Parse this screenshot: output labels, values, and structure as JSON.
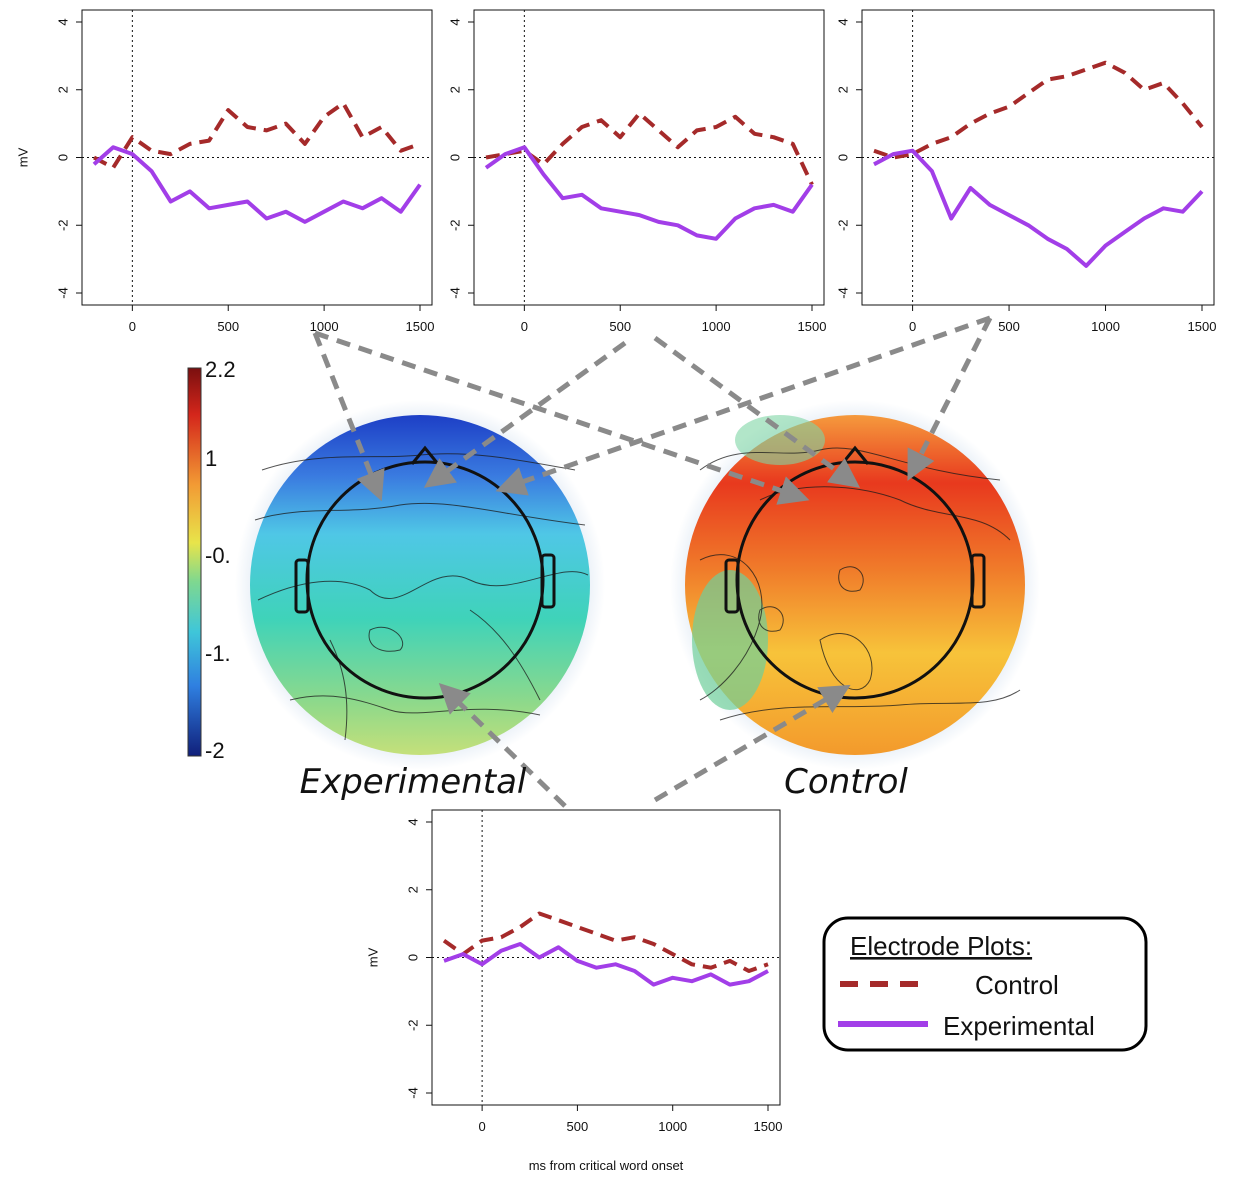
{
  "colors": {
    "control": "#a52a2a",
    "experimental": "#a23ee8",
    "arrow": "#8a8a8a"
  },
  "labels": {
    "experimental": "Experimental",
    "control": "Control",
    "legend_title": "Electrode Plots:",
    "legend_control": "Control",
    "legend_experimental": "Experimental",
    "ylabel": "mV",
    "xlabel": "ms from critical word onset"
  },
  "colorbar": {
    "ticks": [
      "2.2",
      "1",
      "-0.",
      "-1.",
      "-2"
    ]
  },
  "chart_data": [
    {
      "type": "line",
      "panel": "top-left",
      "xlim": [
        -200,
        1500
      ],
      "ylim": [
        -4,
        4
      ],
      "xticks": [
        0,
        500,
        1000,
        1500
      ],
      "yticks": [
        -4,
        -2,
        0,
        2,
        4
      ],
      "ylabel": "mV",
      "xlabel": "",
      "series": [
        {
          "name": "Control",
          "style": "dashed",
          "x": [
            -200,
            -100,
            0,
            100,
            200,
            300,
            400,
            500,
            600,
            700,
            800,
            900,
            1000,
            1100,
            1200,
            1300,
            1400,
            1500
          ],
          "y": [
            0,
            -0.3,
            0.6,
            0.2,
            0.1,
            0.4,
            0.5,
            1.4,
            0.9,
            0.8,
            1.0,
            0.4,
            1.2,
            1.6,
            0.6,
            0.9,
            0.2,
            0.4
          ]
        },
        {
          "name": "Experimental",
          "style": "solid",
          "x": [
            -200,
            -100,
            0,
            100,
            200,
            300,
            400,
            500,
            600,
            700,
            800,
            900,
            1000,
            1100,
            1200,
            1300,
            1400,
            1500
          ],
          "y": [
            -0.2,
            0.3,
            0.1,
            -0.4,
            -1.3,
            -1.0,
            -1.5,
            -1.4,
            -1.3,
            -1.8,
            -1.6,
            -1.9,
            -1.6,
            -1.3,
            -1.5,
            -1.2,
            -1.6,
            -0.8
          ]
        }
      ]
    },
    {
      "type": "line",
      "panel": "top-middle",
      "xlim": [
        -200,
        1500
      ],
      "ylim": [
        -4,
        4
      ],
      "xticks": [
        0,
        500,
        1000,
        1500
      ],
      "yticks": [
        -4,
        -2,
        0,
        2,
        4
      ],
      "xlabel": "",
      "series": [
        {
          "name": "Control",
          "style": "dashed",
          "x": [
            -200,
            -100,
            0,
            100,
            200,
            300,
            400,
            500,
            600,
            700,
            800,
            900,
            1000,
            1100,
            1200,
            1300,
            1400,
            1500
          ],
          "y": [
            0,
            0.1,
            0.2,
            -0.2,
            0.4,
            0.9,
            1.1,
            0.6,
            1.3,
            0.8,
            0.3,
            0.8,
            0.9,
            1.2,
            0.7,
            0.6,
            0.4,
            -0.8
          ]
        },
        {
          "name": "Experimental",
          "style": "solid",
          "x": [
            -200,
            -100,
            0,
            100,
            200,
            300,
            400,
            500,
            600,
            700,
            800,
            900,
            1000,
            1100,
            1200,
            1300,
            1400,
            1500
          ],
          "y": [
            -0.3,
            0.1,
            0.3,
            -0.5,
            -1.2,
            -1.1,
            -1.5,
            -1.6,
            -1.7,
            -1.9,
            -2.0,
            -2.3,
            -2.4,
            -1.8,
            -1.5,
            -1.4,
            -1.6,
            -0.8
          ]
        }
      ]
    },
    {
      "type": "line",
      "panel": "top-right",
      "xlim": [
        -200,
        1500
      ],
      "ylim": [
        -4,
        4
      ],
      "xticks": [
        0,
        500,
        1000,
        1500
      ],
      "yticks": [
        -4,
        -2,
        0,
        2,
        4
      ],
      "xlabel": "",
      "series": [
        {
          "name": "Control",
          "style": "dashed",
          "x": [
            -200,
            -100,
            0,
            100,
            200,
            300,
            400,
            500,
            600,
            700,
            800,
            900,
            1000,
            1100,
            1200,
            1300,
            1400,
            1500
          ],
          "y": [
            0.2,
            0,
            0.1,
            0.4,
            0.6,
            1.0,
            1.3,
            1.5,
            1.9,
            2.3,
            2.4,
            2.6,
            2.8,
            2.5,
            2.0,
            2.2,
            1.6,
            0.9
          ]
        },
        {
          "name": "Experimental",
          "style": "solid",
          "x": [
            -200,
            -100,
            0,
            100,
            200,
            300,
            400,
            500,
            600,
            700,
            800,
            900,
            1000,
            1100,
            1200,
            1300,
            1400,
            1500
          ],
          "y": [
            -0.2,
            0.1,
            0.2,
            -0.4,
            -1.8,
            -0.9,
            -1.4,
            -1.7,
            -2.0,
            -2.4,
            -2.7,
            -3.2,
            -2.6,
            -2.2,
            -1.8,
            -1.5,
            -1.6,
            -1.0
          ]
        }
      ]
    },
    {
      "type": "line",
      "panel": "bottom",
      "xlim": [
        -200,
        1500
      ],
      "ylim": [
        -4,
        4
      ],
      "xticks": [
        0,
        500,
        1000,
        1500
      ],
      "yticks": [
        -4,
        -2,
        0,
        2,
        4
      ],
      "ylabel": "mV",
      "xlabel": "ms from critical word onset",
      "series": [
        {
          "name": "Control",
          "style": "dashed",
          "x": [
            -200,
            -100,
            0,
            100,
            200,
            300,
            400,
            500,
            600,
            700,
            800,
            900,
            1000,
            1100,
            1200,
            1300,
            1400,
            1500
          ],
          "y": [
            0.5,
            0.1,
            0.5,
            0.6,
            0.9,
            1.3,
            1.1,
            0.9,
            0.7,
            0.5,
            0.6,
            0.4,
            0.1,
            -0.2,
            -0.3,
            -0.1,
            -0.4,
            -0.2
          ]
        },
        {
          "name": "Experimental",
          "style": "solid",
          "x": [
            -200,
            -100,
            0,
            100,
            200,
            300,
            400,
            500,
            600,
            700,
            800,
            900,
            1000,
            1100,
            1200,
            1300,
            1400,
            1500
          ],
          "y": [
            -0.1,
            0.1,
            -0.2,
            0.2,
            0.4,
            0,
            0.3,
            -0.1,
            -0.3,
            -0.2,
            -0.4,
            -0.8,
            -0.6,
            -0.7,
            -0.5,
            -0.8,
            -0.7,
            -0.4
          ]
        }
      ]
    }
  ]
}
